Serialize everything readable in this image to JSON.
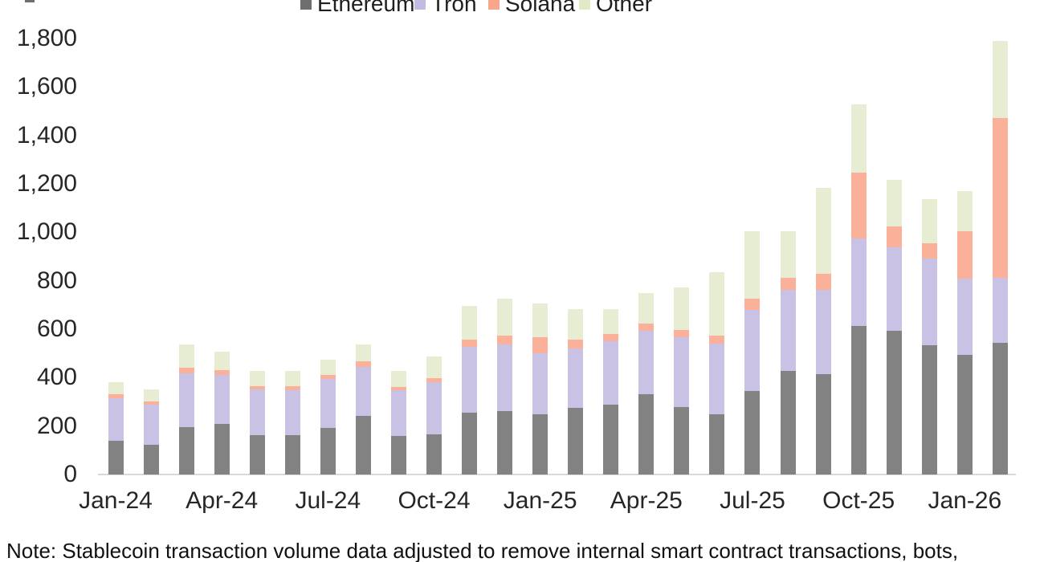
{
  "legend": {
    "items": [
      {
        "label": "Ethereum",
        "color": "#6e6e6e",
        "fill": "#828282"
      },
      {
        "label": "Tron",
        "color": "#c4bbe2",
        "fill": "#c9c2e5"
      },
      {
        "label": "Solana",
        "color": "#f9a78c",
        "fill": "#fbb09a"
      },
      {
        "label": "Other",
        "color": "#e1eac5",
        "fill": "#e6edd2"
      }
    ]
  },
  "note": "Note: Stablecoin transaction volume data adjusted to remove internal smart contract transactions, bots,",
  "chart_data": {
    "type": "bar",
    "stacked": true,
    "grid": false,
    "legend_position": "top",
    "ylim": [
      0,
      1800
    ],
    "y_ticks": [
      0,
      200,
      400,
      600,
      800,
      1000,
      1200,
      1400,
      1600,
      1800
    ],
    "x_tick_labels": [
      "Jan-24",
      "Apr-24",
      "Jul-24",
      "Oct-24",
      "Jan-25",
      "Apr-25",
      "Jul-25",
      "Oct-25",
      "Jan-26"
    ],
    "categories": [
      "Jan-24",
      "Feb-24",
      "Mar-24",
      "Apr-24",
      "May-24",
      "Jun-24",
      "Jul-24",
      "Aug-24",
      "Sep-24",
      "Oct-24",
      "Nov-24",
      "Dec-24",
      "Jan-25",
      "Feb-25",
      "Mar-25",
      "Apr-25",
      "May-25",
      "Jun-25",
      "Jul-25",
      "Aug-25",
      "Sep-25",
      "Oct-25",
      "Nov-25",
      "Dec-25",
      "Jan-26",
      "Feb-26"
    ],
    "series": [
      {
        "name": "Ethereum",
        "values": [
          140,
          123,
          195,
          208,
          161,
          162,
          193,
          243,
          158,
          166,
          255,
          261,
          248,
          275,
          287,
          330,
          277,
          249,
          346,
          427,
          415,
          614,
          593,
          534,
          495,
          543
        ]
      },
      {
        "name": "Tron",
        "values": [
          176,
          164,
          223,
          204,
          190,
          187,
          202,
          202,
          190,
          215,
          271,
          276,
          253,
          245,
          262,
          262,
          290,
          291,
          334,
          336,
          347,
          360,
          345,
          358,
          313,
          269
        ]
      },
      {
        "name": "Solana",
        "values": [
          15,
          14,
          24,
          20,
          14,
          16,
          15,
          22,
          13,
          18,
          32,
          38,
          65,
          38,
          32,
          32,
          31,
          33,
          46,
          49,
          66,
          274,
          85,
          62,
          196,
          659
        ]
      },
      {
        "name": "Other",
        "values": [
          51,
          50,
          95,
          75,
          63,
          61,
          65,
          70,
          67,
          88,
          138,
          151,
          140,
          126,
          103,
          124,
          173,
          263,
          280,
          194,
          357,
          279,
          195,
          182,
          167,
          319
        ]
      }
    ]
  }
}
